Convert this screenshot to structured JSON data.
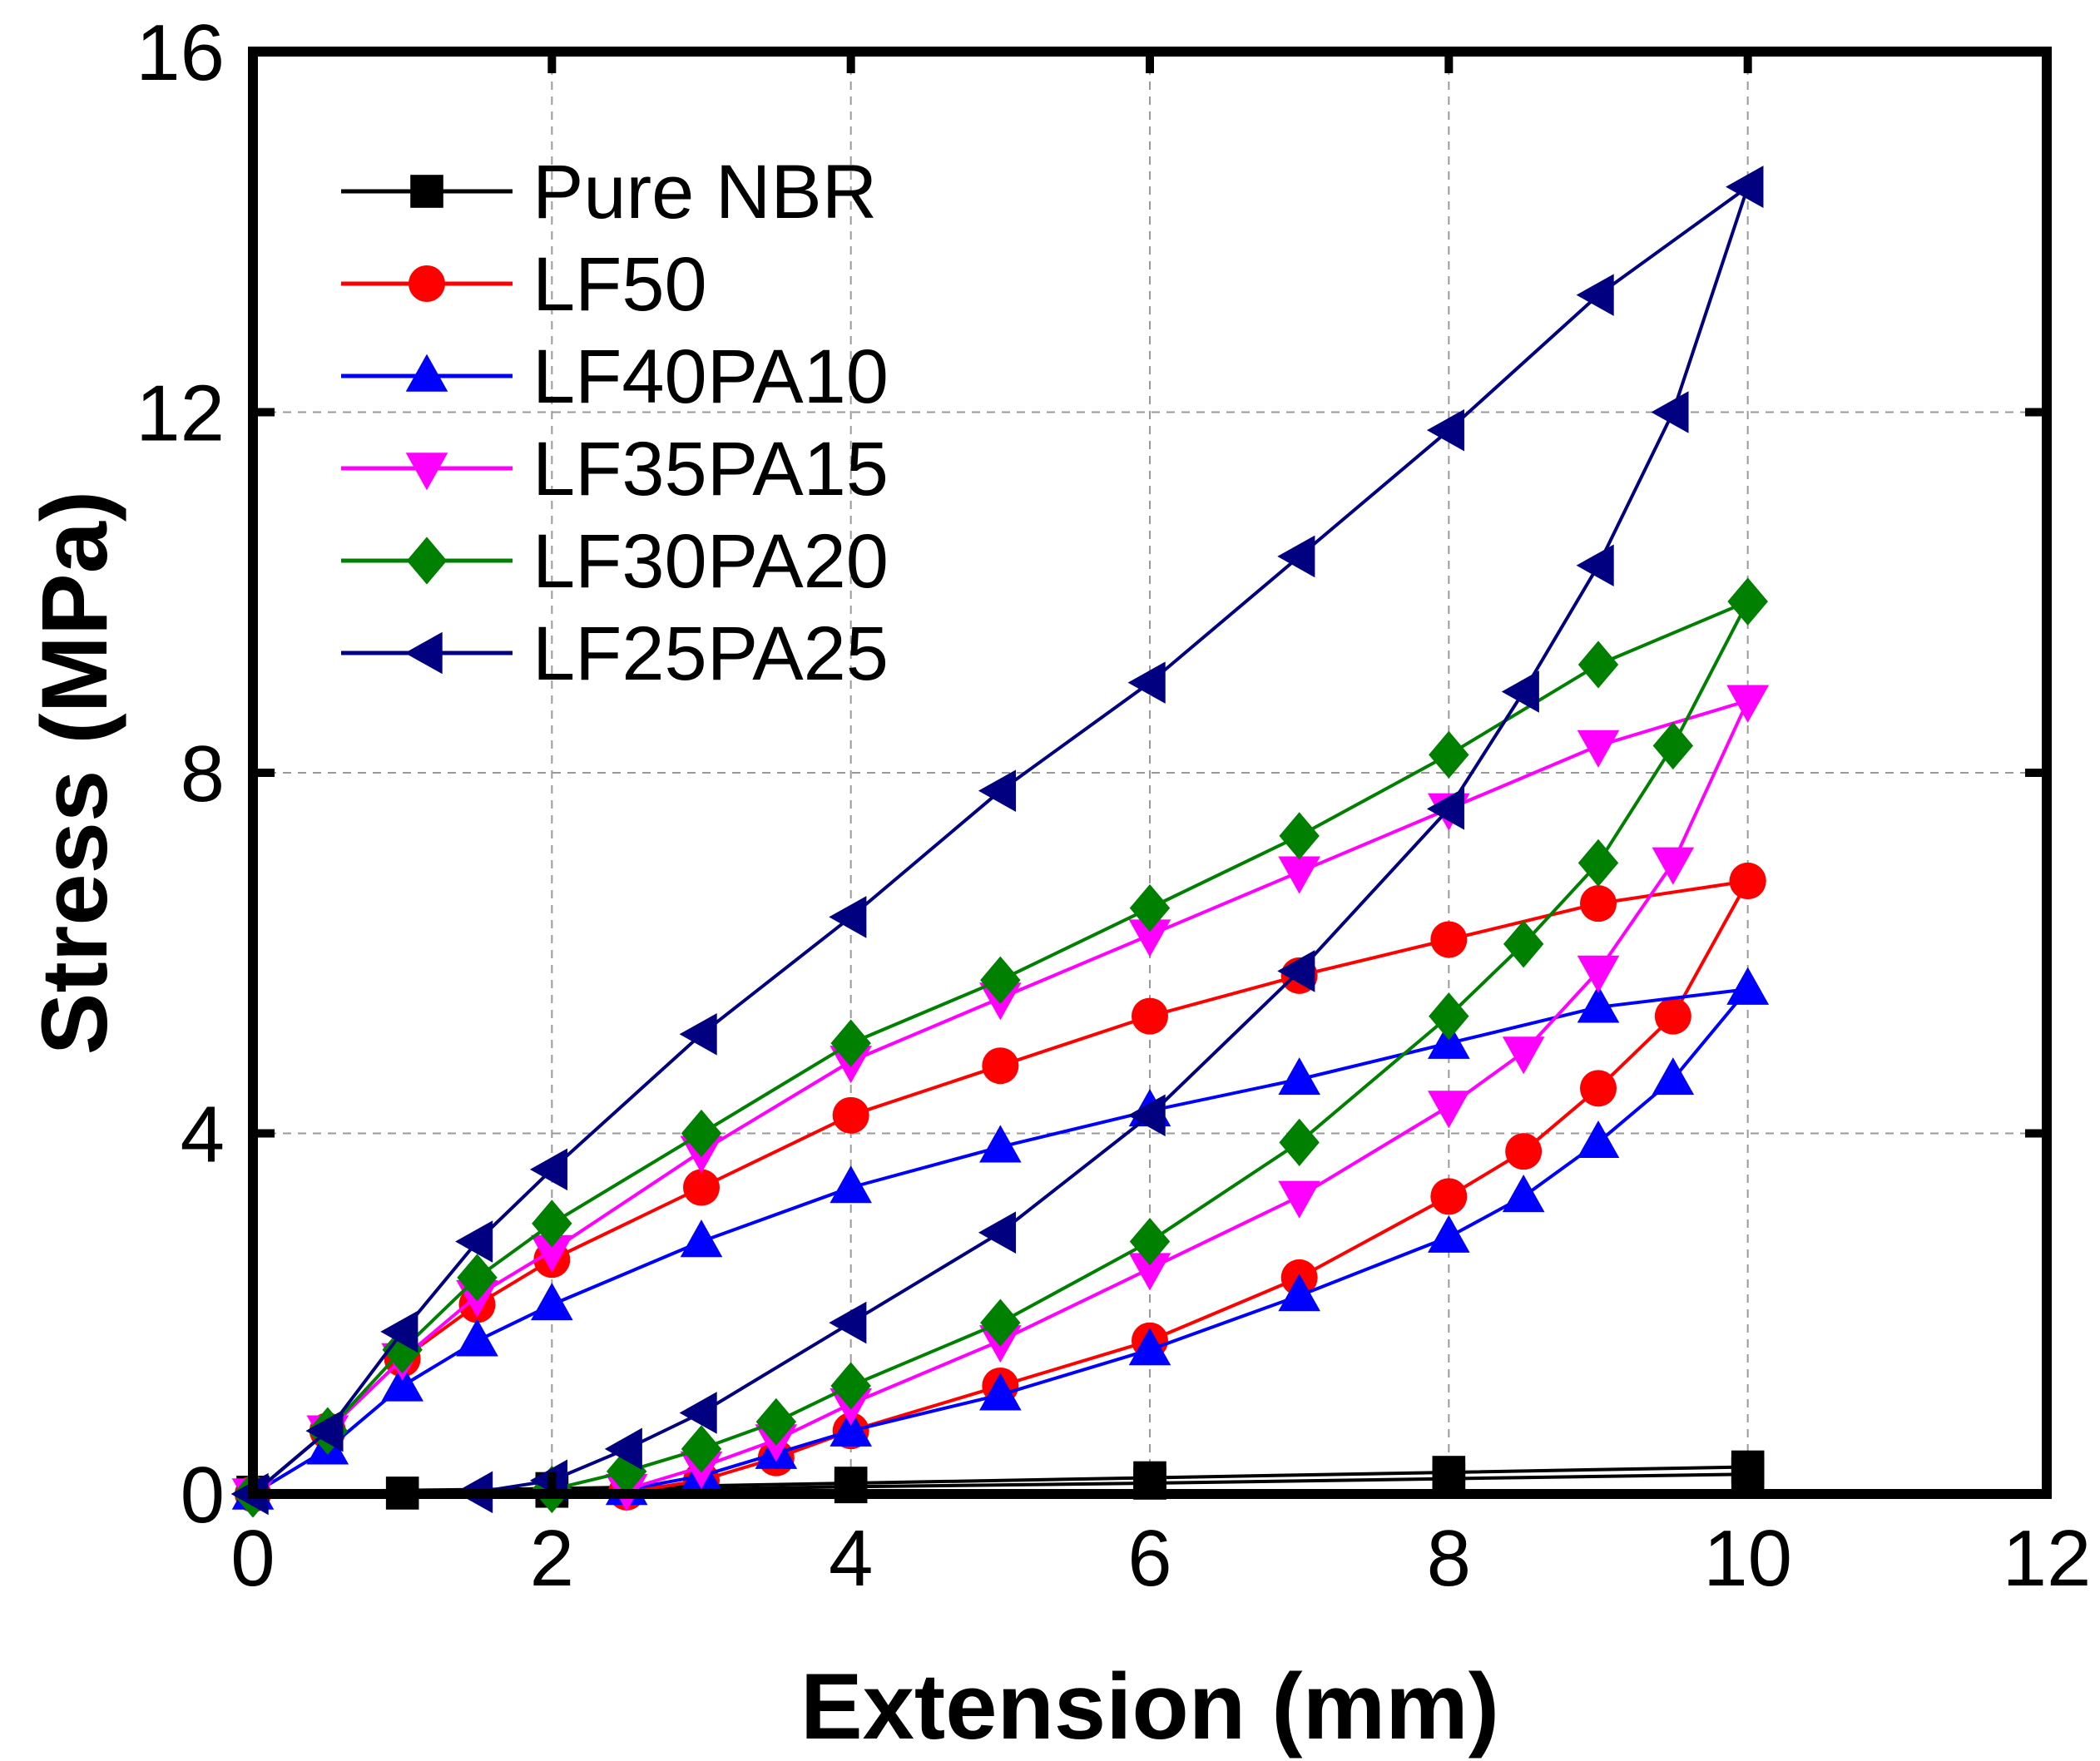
{
  "chart_data": {
    "type": "line",
    "title": "",
    "xlabel": "Extension (mm)",
    "ylabel": "Stress (MPa)",
    "xlim": [
      0,
      12
    ],
    "ylim": [
      0,
      16
    ],
    "xticks": [
      0,
      2,
      4,
      6,
      8,
      10,
      12
    ],
    "yticks": [
      0,
      4,
      8,
      12,
      16
    ],
    "grid": true,
    "legend_position": "top-left",
    "series": [
      {
        "name": "Pure NBR",
        "color": "#000000",
        "marker": "square",
        "loading": [
          [
            0,
            0.02
          ],
          [
            2,
            0.06
          ],
          [
            4,
            0.12
          ],
          [
            6,
            0.18
          ],
          [
            8,
            0.24
          ],
          [
            10,
            0.3
          ]
        ],
        "unloading": [
          [
            10,
            0.22
          ],
          [
            8,
            0.17
          ],
          [
            6,
            0.12
          ],
          [
            4,
            0.08
          ],
          [
            2,
            0.03
          ],
          [
            1,
            0.01
          ]
        ]
      },
      {
        "name": "LF50",
        "color": "#ff0000",
        "marker": "circle",
        "loading": [
          [
            0,
            0
          ],
          [
            0.5,
            0.7
          ],
          [
            1,
            1.5
          ],
          [
            1.5,
            2.1
          ],
          [
            2,
            2.6
          ],
          [
            3,
            3.4
          ],
          [
            4,
            4.2
          ],
          [
            5,
            4.75
          ],
          [
            6,
            5.3
          ],
          [
            7,
            5.75
          ],
          [
            8,
            6.15
          ],
          [
            9,
            6.55
          ],
          [
            10,
            6.8
          ]
        ],
        "unloading": [
          [
            10,
            6.8
          ],
          [
            9.5,
            5.3
          ],
          [
            9,
            4.5
          ],
          [
            8.5,
            3.8
          ],
          [
            8,
            3.3
          ],
          [
            7,
            2.4
          ],
          [
            6,
            1.7
          ],
          [
            5,
            1.2
          ],
          [
            4,
            0.7
          ],
          [
            3.5,
            0.4
          ],
          [
            3,
            0.15
          ],
          [
            2.5,
            0.02
          ]
        ]
      },
      {
        "name": "LF40PA10",
        "color": "#0000ff",
        "marker": "triangle-up",
        "loading": [
          [
            0,
            0
          ],
          [
            0.5,
            0.5
          ],
          [
            1,
            1.2
          ],
          [
            1.5,
            1.7
          ],
          [
            2,
            2.1
          ],
          [
            3,
            2.8
          ],
          [
            4,
            3.4
          ],
          [
            5,
            3.85
          ],
          [
            6,
            4.25
          ],
          [
            7,
            4.6
          ],
          [
            8,
            5.0
          ],
          [
            9,
            5.4
          ],
          [
            10,
            5.6
          ]
        ],
        "unloading": [
          [
            10,
            5.6
          ],
          [
            9.5,
            4.6
          ],
          [
            9,
            3.9
          ],
          [
            8.5,
            3.3
          ],
          [
            8,
            2.85
          ],
          [
            7,
            2.2
          ],
          [
            6,
            1.6
          ],
          [
            5,
            1.1
          ],
          [
            4,
            0.7
          ],
          [
            3.5,
            0.45
          ],
          [
            3,
            0.2
          ],
          [
            2.5,
            0.05
          ]
        ]
      },
      {
        "name": "LF35PA15",
        "color": "#ff00ff",
        "marker": "triangle-down",
        "loading": [
          [
            0,
            0
          ],
          [
            0.5,
            0.7
          ],
          [
            1,
            1.5
          ],
          [
            1.5,
            2.2
          ],
          [
            2,
            2.7
          ],
          [
            3,
            3.8
          ],
          [
            4,
            4.8
          ],
          [
            5,
            5.5
          ],
          [
            6,
            6.2
          ],
          [
            7,
            6.9
          ],
          [
            8,
            7.6
          ],
          [
            9,
            8.3
          ],
          [
            10,
            8.8
          ]
        ],
        "unloading": [
          [
            10,
            8.8
          ],
          [
            9.5,
            7.0
          ],
          [
            9,
            5.8
          ],
          [
            8.5,
            4.9
          ],
          [
            8,
            4.3
          ],
          [
            7,
            3.3
          ],
          [
            6,
            2.5
          ],
          [
            5,
            1.7
          ],
          [
            4,
            1.0
          ],
          [
            3.5,
            0.6
          ],
          [
            3,
            0.3
          ],
          [
            2.5,
            0.05
          ]
        ]
      },
      {
        "name": "LF30PA20",
        "color": "#008000",
        "marker": "diamond",
        "loading": [
          [
            0,
            0
          ],
          [
            0.5,
            0.7
          ],
          [
            1,
            1.6
          ],
          [
            1.5,
            2.4
          ],
          [
            2,
            3.0
          ],
          [
            3,
            4.0
          ],
          [
            4,
            5.0
          ],
          [
            5,
            5.7
          ],
          [
            6,
            6.5
          ],
          [
            7,
            7.3
          ],
          [
            8,
            8.2
          ],
          [
            9,
            9.2
          ],
          [
            10,
            9.9
          ]
        ],
        "unloading": [
          [
            10,
            9.9
          ],
          [
            9.5,
            8.3
          ],
          [
            9,
            7.0
          ],
          [
            8.5,
            6.1
          ],
          [
            8,
            5.3
          ],
          [
            7,
            3.9
          ],
          [
            6,
            2.8
          ],
          [
            5,
            1.9
          ],
          [
            4,
            1.2
          ],
          [
            3.5,
            0.8
          ],
          [
            3,
            0.5
          ],
          [
            2.5,
            0.25
          ],
          [
            2,
            0.05
          ]
        ]
      },
      {
        "name": "LF25PA25",
        "color": "#000080",
        "marker": "triangle-left",
        "loading": [
          [
            0,
            0
          ],
          [
            0.5,
            0.7
          ],
          [
            1,
            1.8
          ],
          [
            1.5,
            2.8
          ],
          [
            2,
            3.6
          ],
          [
            3,
            5.1
          ],
          [
            4,
            6.4
          ],
          [
            5,
            7.8
          ],
          [
            6,
            9.0
          ],
          [
            7,
            10.4
          ],
          [
            8,
            11.8
          ],
          [
            9,
            13.3
          ],
          [
            10,
            14.5
          ]
        ],
        "unloading": [
          [
            10,
            14.5
          ],
          [
            9.5,
            12.0
          ],
          [
            9,
            10.3
          ],
          [
            8.5,
            8.9
          ],
          [
            8,
            7.6
          ],
          [
            7,
            5.8
          ],
          [
            6,
            4.2
          ],
          [
            5,
            2.9
          ],
          [
            4,
            1.9
          ],
          [
            3,
            0.9
          ],
          [
            2.5,
            0.5
          ],
          [
            2,
            0.15
          ],
          [
            1.5,
            0.02
          ]
        ]
      }
    ]
  }
}
